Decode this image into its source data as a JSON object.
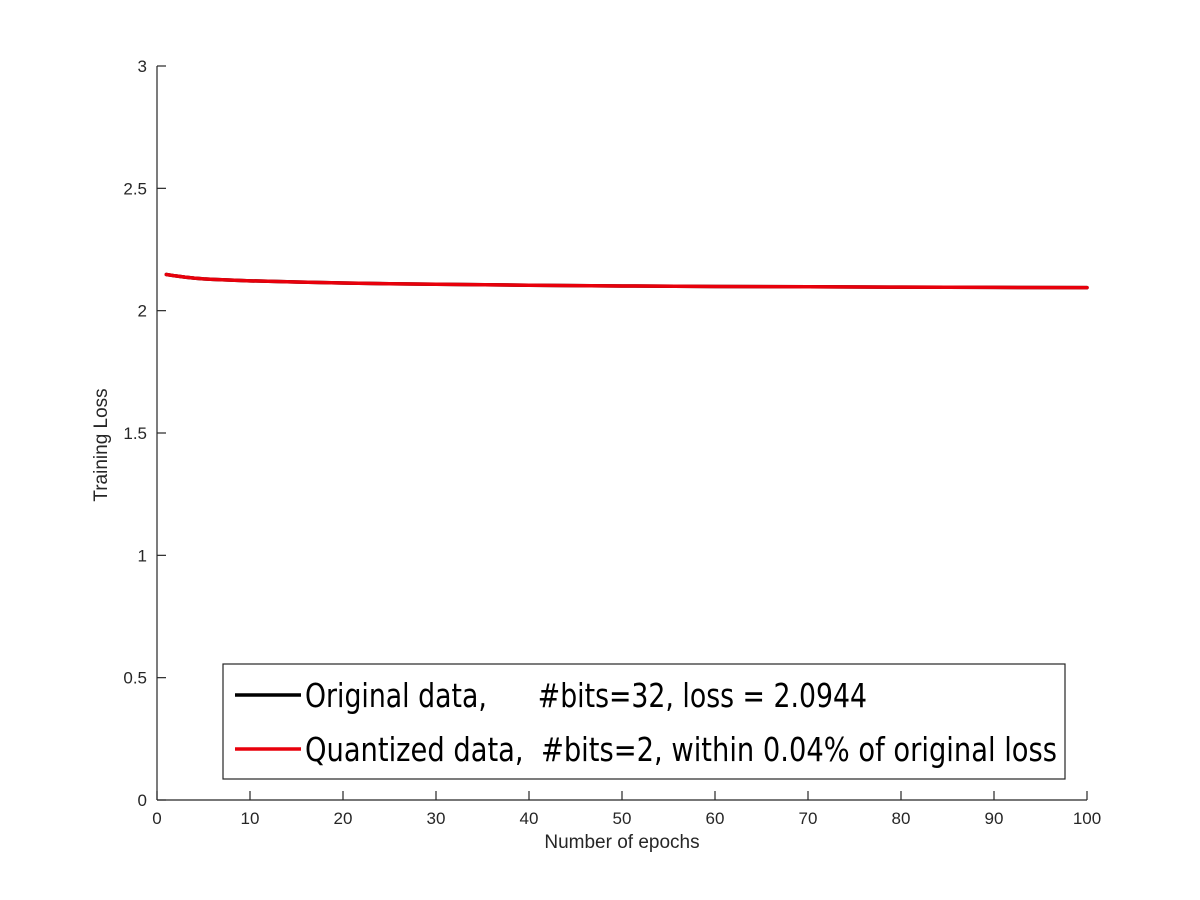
{
  "chart_data": {
    "type": "line",
    "xlabel": "Number of epochs",
    "ylabel": "Training Loss",
    "xlim": [
      0,
      100
    ],
    "ylim": [
      0,
      3
    ],
    "xticks": [
      0,
      10,
      20,
      30,
      40,
      50,
      60,
      70,
      80,
      90,
      100
    ],
    "yticks": [
      0,
      0.5,
      1,
      1.5,
      2,
      2.5,
      3
    ],
    "ytick_labels": [
      "0",
      "0.5",
      "1",
      "1.5",
      "2",
      "2.5",
      "3"
    ],
    "grid": false,
    "legend_position": "bottom",
    "series": [
      {
        "name": "Original data,      #bits=32, loss = 2.0944",
        "color": "#000000",
        "x": [
          1,
          2,
          3,
          4,
          5,
          6,
          8,
          10,
          15,
          20,
          25,
          30,
          40,
          50,
          60,
          70,
          80,
          90,
          100
        ],
        "y": [
          2.148,
          2.142,
          2.137,
          2.133,
          2.13,
          2.128,
          2.125,
          2.122,
          2.117,
          2.113,
          2.11,
          2.108,
          2.104,
          2.101,
          2.099,
          2.098,
          2.096,
          2.095,
          2.094
        ]
      },
      {
        "name": "Quantized data,  #bits=2, within 0.04% of original loss",
        "color": "#e8000b",
        "x": [
          1,
          2,
          3,
          4,
          5,
          6,
          8,
          10,
          15,
          20,
          25,
          30,
          40,
          50,
          60,
          70,
          80,
          90,
          100
        ],
        "y": [
          2.148,
          2.142,
          2.137,
          2.133,
          2.13,
          2.128,
          2.125,
          2.122,
          2.117,
          2.113,
          2.11,
          2.108,
          2.104,
          2.101,
          2.099,
          2.098,
          2.096,
          2.095,
          2.094
        ]
      }
    ]
  }
}
